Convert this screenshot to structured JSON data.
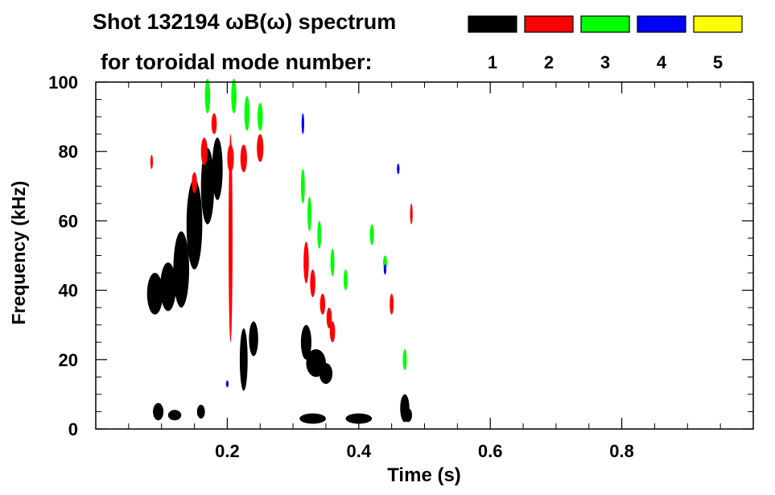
{
  "chart_data": {
    "type": "scatter",
    "title_line1": "Shot 132194 ωB(ω) spectrum",
    "title_line2": "for toroidal mode number:",
    "xlabel": "Time (s)",
    "ylabel": "Frequency (kHz)",
    "xlim": [
      0.0,
      1.0
    ],
    "ylim": [
      0,
      100
    ],
    "x_ticks": [
      {
        "value": 0.2,
        "label": "0.2"
      },
      {
        "value": 0.4,
        "label": "0.4"
      },
      {
        "value": 0.6,
        "label": "0.6"
      },
      {
        "value": 0.8,
        "label": "0.8"
      }
    ],
    "y_ticks": [
      {
        "value": 0,
        "label": "0"
      },
      {
        "value": 20,
        "label": "20"
      },
      {
        "value": 40,
        "label": "40"
      },
      {
        "value": 60,
        "label": "60"
      },
      {
        "value": 80,
        "label": "80"
      },
      {
        "value": 100,
        "label": "100"
      }
    ],
    "legend": {
      "placement": "top-right",
      "entries": [
        {
          "label": "1",
          "color": "#000000"
        },
        {
          "label": "2",
          "color": "#ff0000"
        },
        {
          "label": "3",
          "color": "#00ff00"
        },
        {
          "label": "4",
          "color": "#0000ff"
        },
        {
          "label": "5",
          "color": "#ffff00"
        }
      ]
    },
    "series": [
      {
        "name": "1",
        "color": "#000000",
        "points": [
          {
            "x": 0.09,
            "y": 39,
            "dx": 0.012,
            "dy": 6
          },
          {
            "x": 0.11,
            "y": 41,
            "dx": 0.012,
            "dy": 7
          },
          {
            "x": 0.13,
            "y": 46,
            "dx": 0.012,
            "dy": 11
          },
          {
            "x": 0.15,
            "y": 59,
            "dx": 0.012,
            "dy": 13
          },
          {
            "x": 0.17,
            "y": 70,
            "dx": 0.01,
            "dy": 11
          },
          {
            "x": 0.185,
            "y": 75,
            "dx": 0.008,
            "dy": 9
          },
          {
            "x": 0.095,
            "y": 5,
            "dx": 0.008,
            "dy": 2.5
          },
          {
            "x": 0.12,
            "y": 4,
            "dx": 0.01,
            "dy": 1.5
          },
          {
            "x": 0.16,
            "y": 5,
            "dx": 0.006,
            "dy": 2
          },
          {
            "x": 0.225,
            "y": 20,
            "dx": 0.006,
            "dy": 9
          },
          {
            "x": 0.24,
            "y": 26,
            "dx": 0.007,
            "dy": 5
          },
          {
            "x": 0.32,
            "y": 25,
            "dx": 0.008,
            "dy": 5
          },
          {
            "x": 0.335,
            "y": 19,
            "dx": 0.015,
            "dy": 4
          },
          {
            "x": 0.35,
            "y": 16,
            "dx": 0.01,
            "dy": 3
          },
          {
            "x": 0.33,
            "y": 3,
            "dx": 0.02,
            "dy": 1.5
          },
          {
            "x": 0.4,
            "y": 3,
            "dx": 0.02,
            "dy": 1.5
          },
          {
            "x": 0.47,
            "y": 6,
            "dx": 0.007,
            "dy": 4
          },
          {
            "x": 0.475,
            "y": 4,
            "dx": 0.006,
            "dy": 2
          }
        ]
      },
      {
        "name": "2",
        "color": "#ff0000",
        "points": [
          {
            "x": 0.15,
            "y": 71,
            "dx": 0.004,
            "dy": 3
          },
          {
            "x": 0.165,
            "y": 80,
            "dx": 0.005,
            "dy": 4
          },
          {
            "x": 0.18,
            "y": 88,
            "dx": 0.004,
            "dy": 3
          },
          {
            "x": 0.205,
            "y": 78,
            "dx": 0.005,
            "dy": 4
          },
          {
            "x": 0.225,
            "y": 78,
            "dx": 0.005,
            "dy": 4
          },
          {
            "x": 0.25,
            "y": 81,
            "dx": 0.005,
            "dy": 4
          },
          {
            "x": 0.205,
            "y": 55,
            "dx": 0.003,
            "dy": 30
          },
          {
            "x": 0.32,
            "y": 48,
            "dx": 0.004,
            "dy": 6
          },
          {
            "x": 0.33,
            "y": 42,
            "dx": 0.004,
            "dy": 4
          },
          {
            "x": 0.345,
            "y": 36,
            "dx": 0.004,
            "dy": 3
          },
          {
            "x": 0.355,
            "y": 32,
            "dx": 0.004,
            "dy": 3
          },
          {
            "x": 0.36,
            "y": 28,
            "dx": 0.004,
            "dy": 3
          },
          {
            "x": 0.085,
            "y": 77,
            "dx": 0.002,
            "dy": 2
          },
          {
            "x": 0.45,
            "y": 36,
            "dx": 0.003,
            "dy": 3
          },
          {
            "x": 0.48,
            "y": 62,
            "dx": 0.002,
            "dy": 3
          }
        ]
      },
      {
        "name": "3",
        "color": "#00ff00",
        "points": [
          {
            "x": 0.17,
            "y": 96,
            "dx": 0.004,
            "dy": 5
          },
          {
            "x": 0.21,
            "y": 96,
            "dx": 0.004,
            "dy": 5
          },
          {
            "x": 0.23,
            "y": 91,
            "dx": 0.004,
            "dy": 5
          },
          {
            "x": 0.25,
            "y": 90,
            "dx": 0.004,
            "dy": 4
          },
          {
            "x": 0.315,
            "y": 70,
            "dx": 0.003,
            "dy": 5
          },
          {
            "x": 0.325,
            "y": 62,
            "dx": 0.003,
            "dy": 5
          },
          {
            "x": 0.34,
            "y": 56,
            "dx": 0.003,
            "dy": 4
          },
          {
            "x": 0.36,
            "y": 48,
            "dx": 0.003,
            "dy": 4
          },
          {
            "x": 0.38,
            "y": 43,
            "dx": 0.003,
            "dy": 3
          },
          {
            "x": 0.42,
            "y": 56,
            "dx": 0.003,
            "dy": 3
          },
          {
            "x": 0.44,
            "y": 48,
            "dx": 0.003,
            "dy": 2
          },
          {
            "x": 0.47,
            "y": 20,
            "dx": 0.003,
            "dy": 3
          }
        ]
      },
      {
        "name": "4",
        "color": "#0000ff",
        "points": [
          {
            "x": 0.315,
            "y": 88,
            "dx": 0.002,
            "dy": 3
          },
          {
            "x": 0.44,
            "y": 46,
            "dx": 0.002,
            "dy": 1.5
          },
          {
            "x": 0.46,
            "y": 75,
            "dx": 0.002,
            "dy": 1.5
          },
          {
            "x": 0.2,
            "y": 13,
            "dx": 0.002,
            "dy": 1
          }
        ]
      },
      {
        "name": "5",
        "color": "#ffff00",
        "points": []
      }
    ]
  }
}
